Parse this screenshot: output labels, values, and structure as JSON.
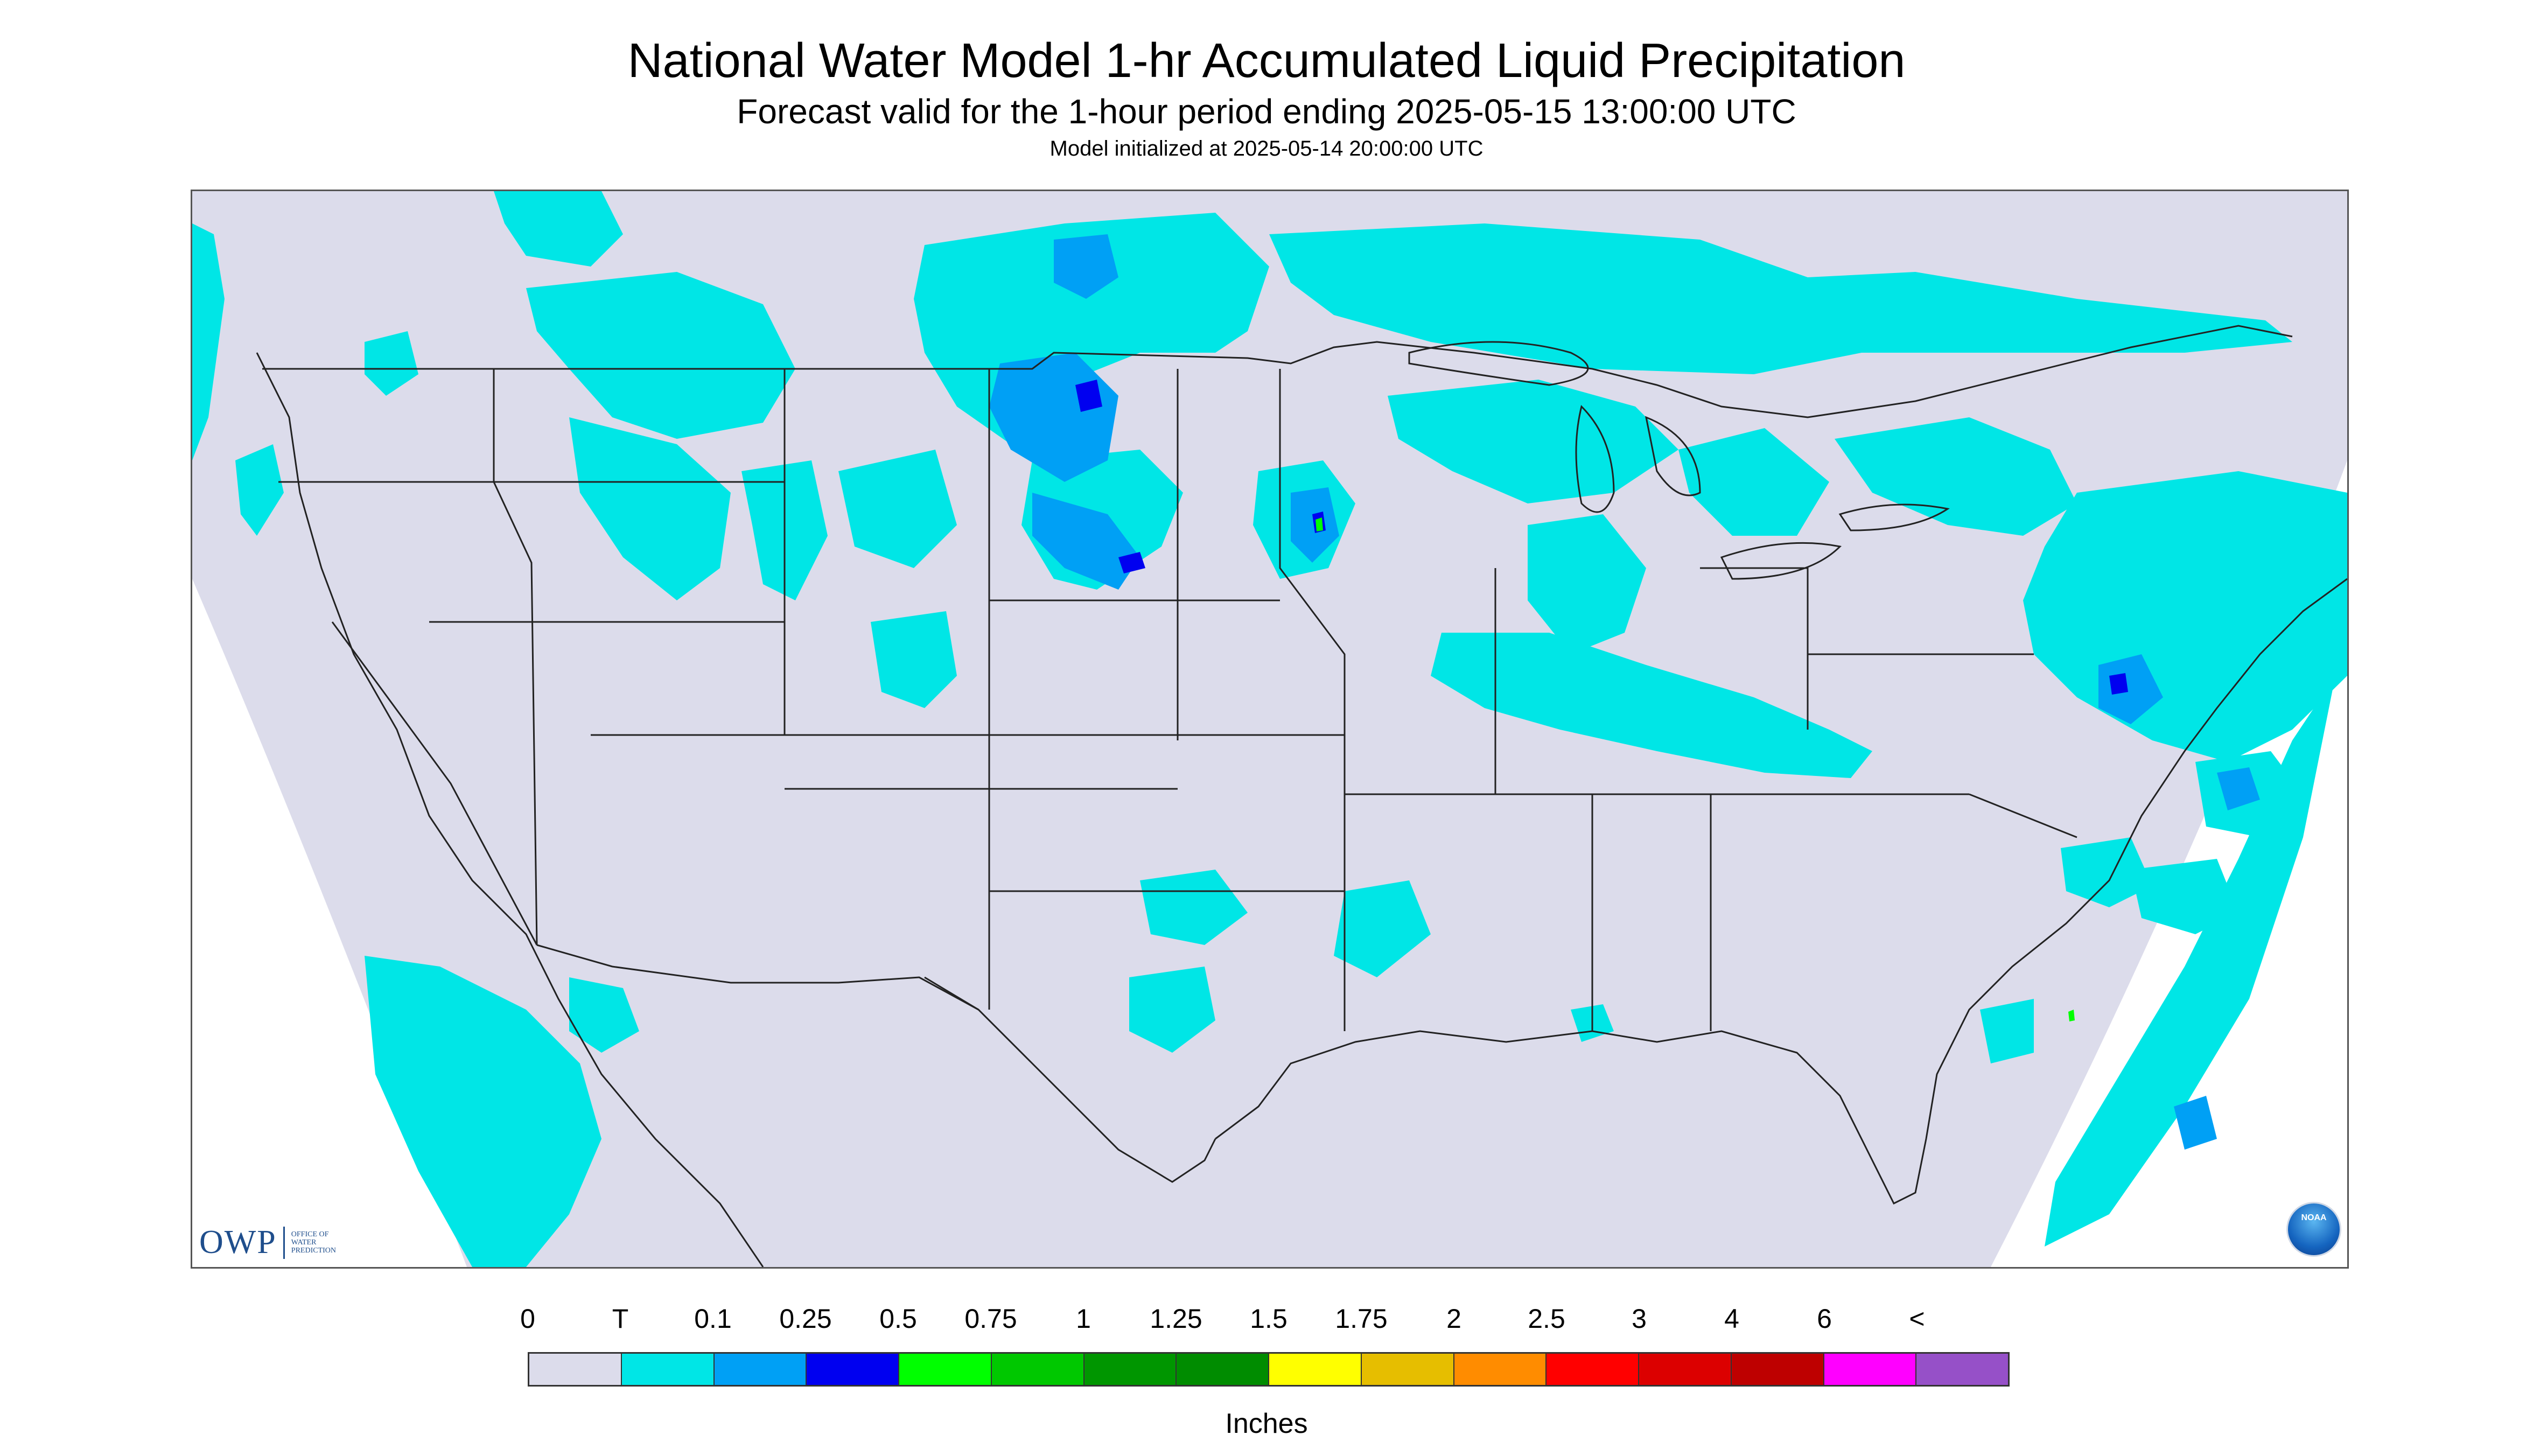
{
  "title": "National Water Model 1-hr Accumulated Liquid Precipitation",
  "subtitle": "Forecast valid for the 1-hour period ending 2025-05-15 13:00:00 UTC",
  "init_line": "Model initialized at 2025-05-14 20:00:00 UTC",
  "logo": {
    "mark": "OWP",
    "subtext": [
      "OFFICE OF",
      "WATER",
      "PREDICTION"
    ],
    "color": "#1f4e8c"
  },
  "noaa_logo": {
    "text": "NOAA"
  },
  "colors": {
    "domain_fill": "#dcdceb",
    "boundary": "#222222",
    "precip_trace": "#00e6e6",
    "precip_light": "#00a0f5",
    "precip_moderate": "#0000f0",
    "precip_green": "#00ff00"
  },
  "legend": {
    "unit_label": "Inches",
    "labels": [
      "0",
      "T",
      "0.1",
      "0.25",
      "0.5",
      "0.75",
      "1",
      "1.25",
      "1.5",
      "1.75",
      "2",
      "2.5",
      "3",
      "4",
      "6",
      "<"
    ],
    "colors": [
      "#dcdceb",
      "#00e6e6",
      "#00a0f5",
      "#0000f0",
      "#00ff00",
      "#00c800",
      "#009600",
      "#008c00",
      "#ffff00",
      "#e6be00",
      "#ff8c00",
      "#ff0000",
      "#dc0000",
      "#be0000",
      "#ff00ff",
      "#9650c8"
    ]
  }
}
